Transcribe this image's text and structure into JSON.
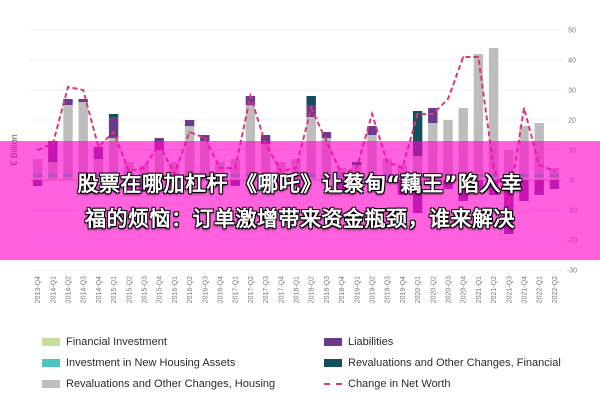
{
  "chart_data": {
    "type": "bar",
    "ylabel": "€ Billion",
    "ylim": [
      -30,
      50
    ],
    "yticks": [
      50,
      40,
      30,
      20,
      10,
      0,
      -10,
      -20,
      -30
    ],
    "grid": true,
    "legend_position": "bottom",
    "categories": [
      "2013-Q4",
      "2014-Q1",
      "2014-Q2",
      "2014-Q3",
      "2014-Q4",
      "2015-Q1",
      "2015-Q2",
      "2015-Q3",
      "2015-Q4",
      "2016-Q1",
      "2016-Q2",
      "2016-Q3",
      "2016-Q4",
      "2017-Q1",
      "2017-Q2",
      "2017-Q3",
      "2017-Q4",
      "2018-Q1",
      "2018-Q2",
      "2018-Q3",
      "2018-Q4",
      "2019-Q1",
      "2019-Q2",
      "2019-Q3",
      "2019-Q4",
      "2020-Q1",
      "2020-Q2",
      "2020-Q3",
      "2020-Q4",
      "2021-Q1",
      "2021-Q2",
      "2021-Q3",
      "2021-Q4",
      "2022-Q1",
      "2022-Q2"
    ],
    "x_tick_labels": [
      "2013-Q4",
      "2014-Q1",
      "2014-Q2",
      "2014-Q3",
      "2014-Q4",
      "2015-Q1",
      "2015-Q2",
      "2015-Q3",
      "2015-Q4",
      "2016-Q1",
      "2016-Q2",
      "2016-Q3",
      "2016-Q4",
      "2017-Q1",
      "2017-Q2",
      "2017-Q3",
      "2017-Q4",
      "2018-Q1",
      "2018-Q2",
      "2018-Q3",
      "2018-Q4",
      "2019-Q1",
      "2019-Q2",
      "2019-Q3",
      "2019-Q4",
      "2020-Q1",
      "2020-Q2",
      "2020-Q3",
      "2020-Q4",
      "2021-Q1",
      "2021-Q2",
      "2021-Q3",
      "2021-Q4",
      "2022-Q1",
      "2022-Q2"
    ],
    "series": [
      {
        "name": "Financial Investment",
        "color": "#c5de9d",
        "values": [
          1,
          1,
          1,
          1,
          1,
          1,
          1,
          1,
          1,
          1,
          1,
          1,
          1,
          1,
          1,
          1,
          1,
          1,
          1,
          1,
          1,
          1,
          1,
          1,
          1,
          1,
          1,
          1,
          1,
          1,
          1,
          1,
          1,
          1,
          1
        ]
      },
      {
        "name": "Investment in New Housing Assets",
        "color": "#4fc3c1",
        "values": [
          1,
          1,
          1,
          1,
          1,
          1,
          1,
          1,
          1,
          1,
          1,
          1,
          1,
          1,
          1,
          1,
          1,
          1,
          1,
          1,
          1,
          1,
          1,
          1,
          1,
          1,
          1,
          1,
          1,
          1,
          1,
          1,
          1,
          1,
          1
        ]
      },
      {
        "name": "Revaluations and Other Changes, Housing",
        "color": "#bdbdbd",
        "values": [
          5,
          4,
          23,
          24,
          5,
          12,
          4,
          3,
          8,
          4,
          16,
          11,
          4,
          5,
          23,
          10,
          4,
          5,
          19,
          12,
          2,
          3,
          13,
          5,
          3,
          6,
          17,
          18,
          22,
          40,
          42,
          8,
          16,
          17,
          2
        ]
      },
      {
        "name": "Liabilities",
        "color": "#6a3a8c",
        "values": [
          -2,
          7,
          2,
          1,
          4,
          7,
          -3,
          -4,
          4,
          -2,
          2,
          2,
          -2,
          -2,
          3,
          3,
          -3,
          -2,
          4,
          2,
          -4,
          -3,
          3,
          -1,
          -5,
          -11,
          5,
          -3,
          -7,
          -3,
          -5,
          -18,
          -7,
          -5,
          -3
        ]
      },
      {
        "name": "Revaluations and Other Changes, Financial",
        "color": "#134f5c",
        "values": [
          0,
          0,
          0,
          0,
          0,
          1,
          0,
          0,
          0,
          0,
          0,
          0,
          0,
          0,
          0,
          0,
          0,
          0,
          3,
          0,
          0,
          1,
          0,
          0,
          0,
          15,
          0,
          0,
          0,
          0,
          0,
          0,
          0,
          0,
          0
        ]
      },
      {
        "name": "Change in Net Worth",
        "color": "#e0357d",
        "style": "dashed",
        "values": [
          10,
          12,
          31,
          30,
          11,
          16,
          3,
          4,
          12,
          2,
          16,
          14,
          4,
          4,
          28,
          12,
          3,
          4,
          24,
          13,
          2,
          4,
          22,
          6,
          4,
          22,
          22,
          27,
          41,
          41,
          4,
          -8,
          24,
          5,
          3
        ]
      }
    ]
  },
  "legend": {
    "items": [
      {
        "label": "Financial Investment",
        "color": "#c5de9d"
      },
      {
        "label": "Liabilities",
        "color": "#6a3a8c"
      },
      {
        "label": "Investment in New Housing Assets",
        "color": "#4fc3c1"
      },
      {
        "label": "Revaluations and Other Changes, Financial",
        "color": "#134f5c"
      },
      {
        "label": "Revaluations and Other Changes, Housing",
        "color": "#bdbdbd"
      },
      {
        "label": "Change in Net Worth",
        "color": "#e0357d"
      }
    ]
  },
  "banner": {
    "line1": "股票在哪加杠杆 《哪吒》让蔡甸“藕王”陷入幸",
    "line2": "福的烦恼：订单激增带来资金瓶颈，谁来解决"
  }
}
